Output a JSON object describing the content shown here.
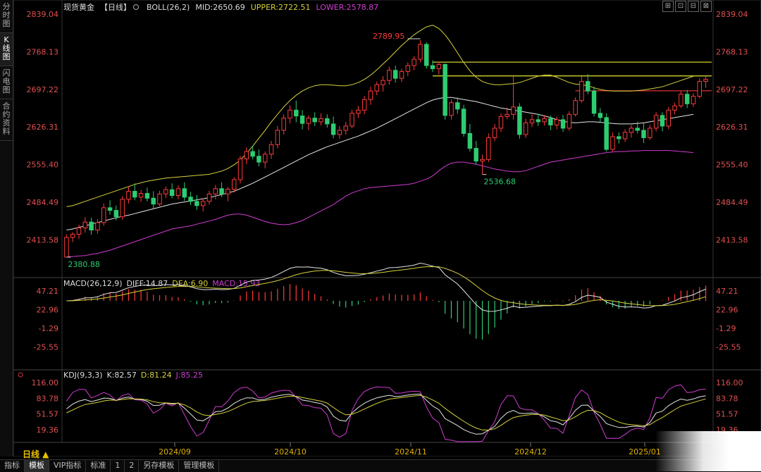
{
  "sidebar": {
    "items": [
      {
        "label": "分时图",
        "active": false
      },
      {
        "label": "K线图",
        "active": true
      },
      {
        "label": "闪电图",
        "active": false
      },
      {
        "label": "合约资料",
        "active": false
      }
    ]
  },
  "toolbar": {
    "buttons": [
      "⊞",
      "⊡",
      "⊟",
      "⊠"
    ]
  },
  "header": {
    "symbol": "现货黄金",
    "period": "【日线】",
    "boll_label": "BOLL(26,2)",
    "mid_label": "MID:2650.69",
    "upper_label": "UPPER:2722.51",
    "lower_label": "LOWER:2578.87"
  },
  "macd_header": {
    "label": "MACD(26,12,9)",
    "diff_label": "DIFF:14.87",
    "dea_label": "DEA:6.90",
    "macd_label": "MACD:15.93"
  },
  "kdj_header": {
    "label": "KDJ(9,3,3)",
    "k_label": "K:82.57",
    "d_label": "D:81.24",
    "j_label": "J:85.25"
  },
  "colors": {
    "up": "#ff3b3b",
    "down": "#2ecc71",
    "mid": "#e6e6e6",
    "upper": "#d6d23a",
    "lower": "#d03cd0",
    "diff": "#e6e6e6",
    "dea": "#d6d23a",
    "j": "#d03cd0",
    "axis_text": "#e05050",
    "hline_yellow": "#e6e632",
    "hline_red": "#e03030"
  },
  "period_label": "日线 ▲",
  "bottom_tabs": [
    "指标",
    "模板",
    "VIP指标",
    "标准",
    "1",
    "2",
    "另存模板",
    "管理模板"
  ],
  "bottom_active": "模板",
  "chart_data": [
    {
      "type": "candlestick",
      "series_names": [
        "BOLL MID",
        "BOLL UPPER",
        "BOLL LOWER"
      ],
      "y_ticks": [
        "2839.04",
        "2768.13",
        "2697.22",
        "2626.31",
        "2555.40",
        "2484.49",
        "2413.58"
      ],
      "ylim": [
        2380.88,
        2839.04
      ],
      "x_ticks": [
        "2024/09",
        "2024/10",
        "2024/11",
        "2024/12",
        "2025/01"
      ],
      "annotations": [
        {
          "label": "2789.95",
          "value": 2789.95,
          "type": "high"
        },
        {
          "label": "2536.68",
          "value": 2536.68,
          "type": "low"
        },
        {
          "label": "2380.88",
          "value": 2380.88,
          "type": "low"
        }
      ],
      "horizontal_lines": [
        2748.5,
        2722.5,
        2694.5
      ],
      "ohlc": [
        [
          2381,
          2424,
          2381,
          2418
        ],
        [
          2418,
          2428,
          2409,
          2424
        ],
        [
          2424,
          2442,
          2415,
          2436
        ],
        [
          2436,
          2456,
          2427,
          2447
        ],
        [
          2447,
          2455,
          2423,
          2432
        ],
        [
          2432,
          2452,
          2425,
          2446
        ],
        [
          2446,
          2482,
          2440,
          2474
        ],
        [
          2474,
          2488,
          2461,
          2469
        ],
        [
          2469,
          2478,
          2450,
          2457
        ],
        [
          2457,
          2496,
          2451,
          2490
        ],
        [
          2490,
          2514,
          2482,
          2505
        ],
        [
          2505,
          2520,
          2488,
          2494
        ],
        [
          2494,
          2508,
          2485,
          2501
        ],
        [
          2501,
          2512,
          2486,
          2492
        ],
        [
          2492,
          2505,
          2473,
          2481
        ],
        [
          2481,
          2506,
          2477,
          2500
        ],
        [
          2500,
          2514,
          2492,
          2508
        ],
        [
          2508,
          2520,
          2492,
          2497
        ],
        [
          2497,
          2516,
          2490,
          2510
        ],
        [
          2510,
          2522,
          2487,
          2494
        ],
        [
          2494,
          2504,
          2479,
          2486
        ],
        [
          2486,
          2498,
          2470,
          2478
        ],
        [
          2478,
          2492,
          2467,
          2486
        ],
        [
          2486,
          2506,
          2480,
          2500
        ],
        [
          2500,
          2517,
          2490,
          2510
        ],
        [
          2510,
          2522,
          2494,
          2500
        ],
        [
          2500,
          2513,
          2486,
          2509
        ],
        [
          2509,
          2532,
          2503,
          2527
        ],
        [
          2527,
          2572,
          2520,
          2566
        ],
        [
          2566,
          2588,
          2556,
          2580
        ],
        [
          2580,
          2591,
          2565,
          2571
        ],
        [
          2571,
          2584,
          2552,
          2560
        ],
        [
          2560,
          2580,
          2548,
          2575
        ],
        [
          2575,
          2600,
          2566,
          2593
        ],
        [
          2593,
          2628,
          2586,
          2620
        ],
        [
          2620,
          2650,
          2612,
          2643
        ],
        [
          2643,
          2667,
          2633,
          2658
        ],
        [
          2658,
          2676,
          2635,
          2647
        ],
        [
          2647,
          2658,
          2622,
          2633
        ],
        [
          2633,
          2648,
          2620,
          2643
        ],
        [
          2643,
          2654,
          2628,
          2636
        ],
        [
          2636,
          2652,
          2629,
          2642
        ],
        [
          2642,
          2650,
          2625,
          2632
        ],
        [
          2632,
          2646,
          2605,
          2612
        ],
        [
          2612,
          2628,
          2604,
          2620
        ],
        [
          2620,
          2636,
          2612,
          2628
        ],
        [
          2628,
          2659,
          2624,
          2652
        ],
        [
          2652,
          2666,
          2643,
          2658
        ],
        [
          2658,
          2685,
          2650,
          2678
        ],
        [
          2678,
          2702,
          2668,
          2694
        ],
        [
          2694,
          2712,
          2686,
          2706
        ],
        [
          2706,
          2722,
          2693,
          2714
        ],
        [
          2714,
          2740,
          2706,
          2733
        ],
        [
          2733,
          2742,
          2710,
          2718
        ],
        [
          2718,
          2736,
          2711,
          2731
        ],
        [
          2731,
          2748,
          2722,
          2742
        ],
        [
          2742,
          2760,
          2733,
          2754
        ],
        [
          2754,
          2790,
          2748,
          2782
        ],
        [
          2782,
          2786,
          2736,
          2742
        ],
        [
          2742,
          2752,
          2730,
          2736
        ],
        [
          2736,
          2749,
          2725,
          2744
        ],
        [
          2744,
          2746,
          2640,
          2648
        ],
        [
          2648,
          2678,
          2640,
          2672
        ],
        [
          2672,
          2682,
          2651,
          2660
        ],
        [
          2660,
          2668,
          2608,
          2614
        ],
        [
          2614,
          2632,
          2580,
          2586
        ],
        [
          2586,
          2600,
          2556,
          2562
        ],
        [
          2562,
          2574,
          2537,
          2565
        ],
        [
          2565,
          2614,
          2560,
          2606
        ],
        [
          2606,
          2632,
          2600,
          2624
        ],
        [
          2624,
          2652,
          2617,
          2646
        ],
        [
          2646,
          2663,
          2641,
          2650
        ],
        [
          2650,
          2722,
          2640,
          2664
        ],
        [
          2664,
          2671,
          2604,
          2612
        ],
        [
          2612,
          2642,
          2606,
          2634
        ],
        [
          2634,
          2650,
          2626,
          2640
        ],
        [
          2640,
          2651,
          2628,
          2636
        ],
        [
          2636,
          2649,
          2629,
          2642
        ],
        [
          2642,
          2648,
          2620,
          2630
        ],
        [
          2630,
          2646,
          2622,
          2640
        ],
        [
          2640,
          2649,
          2617,
          2624
        ],
        [
          2624,
          2656,
          2619,
          2650
        ],
        [
          2650,
          2682,
          2646,
          2676
        ],
        [
          2676,
          2722,
          2672,
          2712
        ],
        [
          2712,
          2726,
          2688,
          2694
        ],
        [
          2694,
          2702,
          2646,
          2652
        ],
        [
          2652,
          2662,
          2636,
          2644
        ],
        [
          2644,
          2652,
          2580,
          2584
        ],
        [
          2584,
          2616,
          2580,
          2608
        ],
        [
          2608,
          2616,
          2595,
          2604
        ],
        [
          2604,
          2622,
          2598,
          2616
        ],
        [
          2616,
          2630,
          2606,
          2624
        ],
        [
          2624,
          2636,
          2614,
          2620
        ],
        [
          2620,
          2634,
          2596,
          2606
        ],
        [
          2606,
          2630,
          2602,
          2624
        ],
        [
          2624,
          2654,
          2618,
          2648
        ],
        [
          2648,
          2654,
          2618,
          2628
        ],
        [
          2628,
          2664,
          2622,
          2658
        ],
        [
          2658,
          2672,
          2650,
          2666
        ],
        [
          2666,
          2694,
          2662,
          2688
        ],
        [
          2688,
          2696,
          2662,
          2670
        ],
        [
          2670,
          2690,
          2664,
          2684
        ],
        [
          2684,
          2718,
          2680,
          2712
        ],
        [
          2712,
          2722,
          2700,
          2716
        ]
      ],
      "boll_mid": [
        2432,
        2434,
        2437,
        2440,
        2443,
        2446,
        2449,
        2452,
        2455,
        2458,
        2460,
        2463,
        2466,
        2469,
        2472,
        2475,
        2478,
        2481,
        2483,
        2485,
        2487,
        2489,
        2491,
        2493,
        2496,
        2499,
        2502,
        2505,
        2510,
        2515,
        2520,
        2526,
        2532,
        2538,
        2544,
        2550,
        2556,
        2562,
        2568,
        2574,
        2579,
        2584,
        2589,
        2593,
        2597,
        2601,
        2605,
        2609,
        2614,
        2619,
        2624,
        2630,
        2636,
        2642,
        2648,
        2654,
        2660,
        2666,
        2672,
        2677,
        2680,
        2682,
        2682,
        2680,
        2678,
        2676,
        2674,
        2671,
        2668,
        2665,
        2662,
        2660,
        2658,
        2656,
        2654,
        2652,
        2650,
        2647,
        2644,
        2640,
        2637,
        2635,
        2634,
        2635,
        2636,
        2636,
        2635,
        2634,
        2633,
        2632,
        2632,
        2632,
        2633,
        2634,
        2636,
        2638,
        2640,
        2642,
        2644,
        2646,
        2648,
        2650
      ],
      "boll_upper": [
        2476,
        2478,
        2482,
        2486,
        2490,
        2494,
        2498,
        2502,
        2506,
        2510,
        2514,
        2518,
        2521,
        2524,
        2526,
        2528,
        2530,
        2531,
        2532,
        2533,
        2534,
        2535,
        2536,
        2537,
        2540,
        2543,
        2548,
        2555,
        2564,
        2576,
        2590,
        2605,
        2620,
        2636,
        2650,
        2664,
        2676,
        2686,
        2694,
        2700,
        2704,
        2706,
        2706,
        2705,
        2704,
        2704,
        2706,
        2710,
        2716,
        2724,
        2734,
        2745,
        2756,
        2768,
        2780,
        2790,
        2800,
        2808,
        2815,
        2818,
        2812,
        2800,
        2784,
        2766,
        2748,
        2732,
        2720,
        2712,
        2708,
        2706,
        2706,
        2707,
        2708,
        2710,
        2714,
        2718,
        2722,
        2724,
        2724,
        2720,
        2715,
        2710,
        2707,
        2706,
        2704,
        2700,
        2697,
        2695,
        2694,
        2694,
        2694,
        2694,
        2695,
        2696,
        2698,
        2700,
        2702,
        2706,
        2710,
        2714,
        2718,
        2722
      ],
      "boll_lower": [
        2382,
        2382,
        2383,
        2384,
        2386,
        2388,
        2391,
        2394,
        2398,
        2402,
        2406,
        2410,
        2414,
        2418,
        2422,
        2426,
        2430,
        2434,
        2436,
        2438,
        2440,
        2443,
        2446,
        2449,
        2452,
        2456,
        2460,
        2462,
        2462,
        2460,
        2456,
        2452,
        2448,
        2445,
        2443,
        2442,
        2443,
        2446,
        2450,
        2456,
        2462,
        2468,
        2474,
        2480,
        2488,
        2496,
        2502,
        2506,
        2510,
        2512,
        2513,
        2514,
        2515,
        2516,
        2517,
        2518,
        2520,
        2524,
        2528,
        2534,
        2544,
        2552,
        2558,
        2560,
        2560,
        2558,
        2556,
        2553,
        2550,
        2547,
        2545,
        2543,
        2542,
        2542,
        2544,
        2548,
        2552,
        2556,
        2560,
        2562,
        2564,
        2566,
        2568,
        2570,
        2572,
        2574,
        2576,
        2578,
        2579,
        2580,
        2580,
        2581,
        2581,
        2582,
        2582,
        2582,
        2582,
        2582,
        2581,
        2580,
        2579,
        2578
      ]
    },
    {
      "type": "line",
      "series_names": [
        "DIFF",
        "DEA",
        "MACD"
      ],
      "y_ticks": [
        "47.21",
        "22.96",
        "-1.29",
        "-25.55"
      ],
      "ylim": [
        -60,
        50
      ]
    },
    {
      "type": "line",
      "series_names": [
        "K",
        "D",
        "J"
      ],
      "y_ticks": [
        "116.00",
        "83.78",
        "51.57",
        "19.36"
      ],
      "ylim": [
        -10,
        120
      ]
    }
  ]
}
